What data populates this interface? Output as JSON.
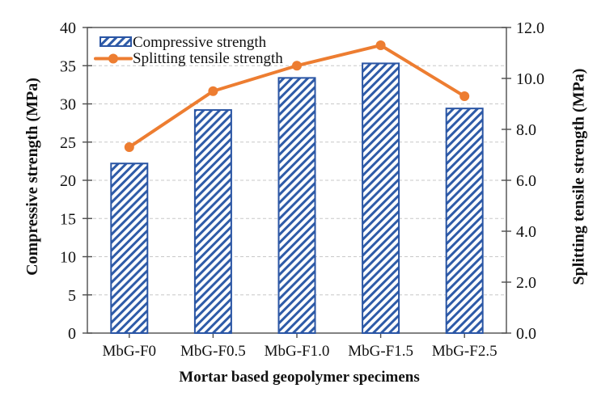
{
  "chart_data": {
    "type": "bar",
    "combo": true,
    "categories": [
      "MbG-F0",
      "MbG-F0.5",
      "MbG-F1.0",
      "MbG-F1.5",
      "MbG-F2.5"
    ],
    "series": [
      {
        "name": "Compressive strength",
        "type": "bar",
        "axis": "left",
        "values": [
          22.2,
          29.2,
          33.4,
          35.3,
          29.4
        ]
      },
      {
        "name": "Splitting tensile strength",
        "type": "line",
        "axis": "right",
        "values": [
          7.3,
          9.5,
          10.5,
          11.3,
          9.3
        ]
      }
    ],
    "xlabel": "Mortar based geopolymer specimens",
    "ylabel_left": "Compressive strength (MPa)",
    "ylabel_right": "Splitting tensile strength (MPa)",
    "left_axis": {
      "min": 0,
      "max": 40,
      "step": 5,
      "tick_labels": [
        "0",
        "5",
        "10",
        "15",
        "20",
        "25",
        "30",
        "35",
        "40"
      ]
    },
    "right_axis": {
      "min": 0,
      "max": 12,
      "step": 2,
      "tick_labels": [
        "0.0",
        "2.0",
        "4.0",
        "6.0",
        "8.0",
        "10.0",
        "12.0"
      ]
    },
    "grid": "horizontal dashed",
    "legend_position": "top-left inside"
  },
  "colors": {
    "bar_hatch": "#2e5ba8",
    "bar_border": "#2a55a4",
    "line": "#ed7d31",
    "grid": "#c8c8c8",
    "axis": "#4d4d4d",
    "text": "#111111",
    "background": "#ffffff"
  }
}
